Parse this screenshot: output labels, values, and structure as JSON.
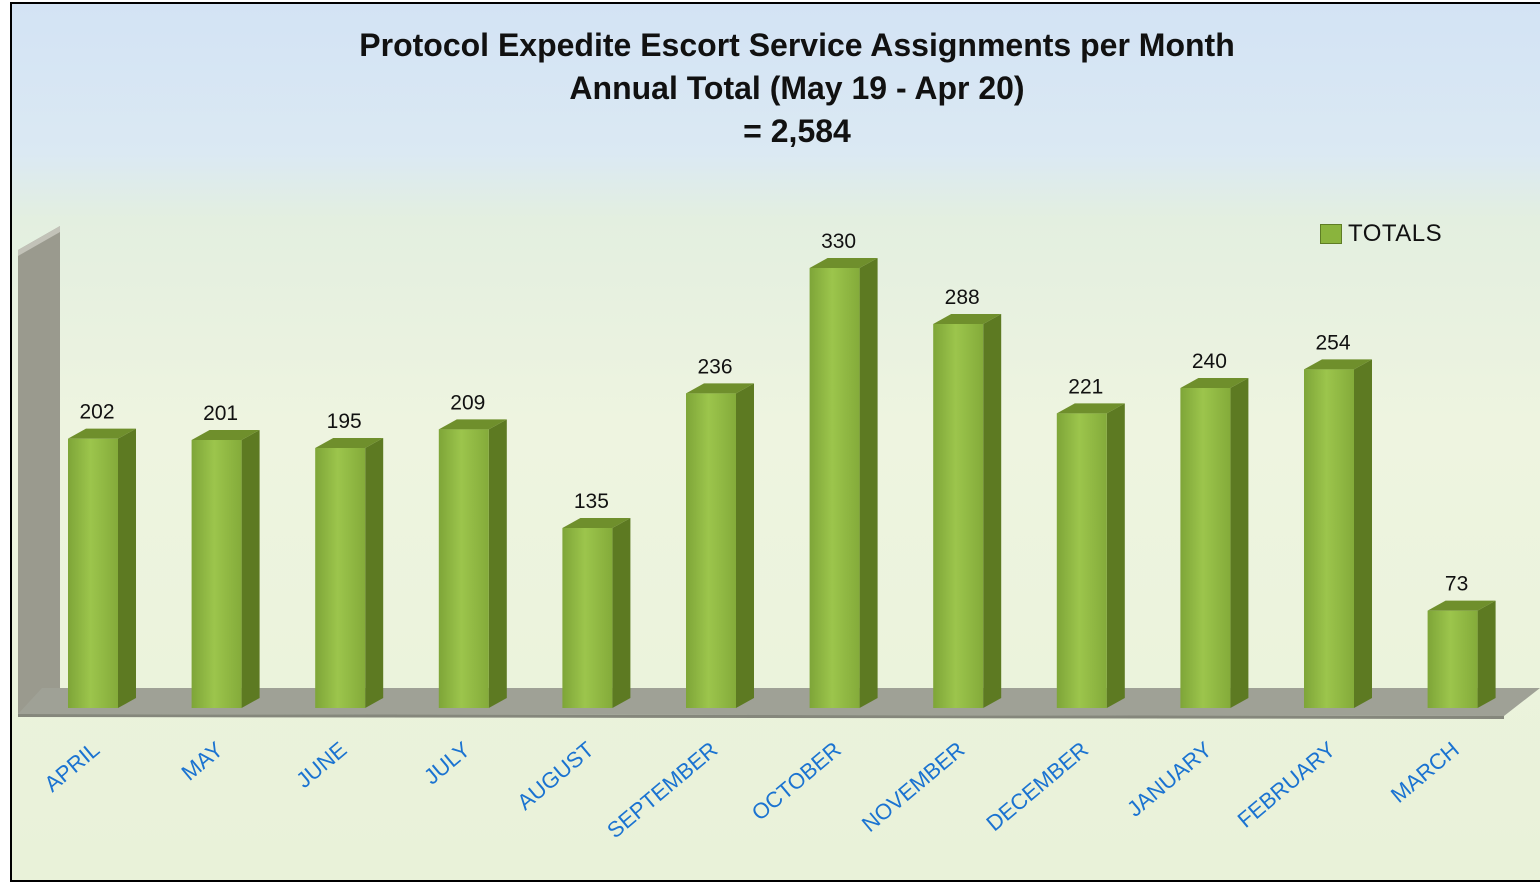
{
  "chart_data": {
    "type": "bar",
    "title": "Protocol Expedite Escort Service Assignments per Month",
    "subtitle": "Annual Total (May 19 - Apr 20)",
    "subtitle_total": "= 2,584",
    "categories": [
      "APRIL",
      "MAY",
      "JUNE",
      "JULY",
      "AUGUST",
      "SEPTEMBER",
      "OCTOBER",
      "NOVEMBER",
      "DECEMBER",
      "JANUARY",
      "FEBRUARY",
      "MARCH"
    ],
    "series": [
      {
        "name": "TOTALS",
        "values": [
          202,
          201,
          195,
          209,
          135,
          236,
          330,
          288,
          221,
          240,
          254,
          73
        ]
      }
    ],
    "ylim": [
      0,
      330
    ],
    "grid": false,
    "legend_position": "top-right",
    "data_labels": true,
    "bar_color": "#8ab43d",
    "category_label_color": "#1b73d1"
  }
}
